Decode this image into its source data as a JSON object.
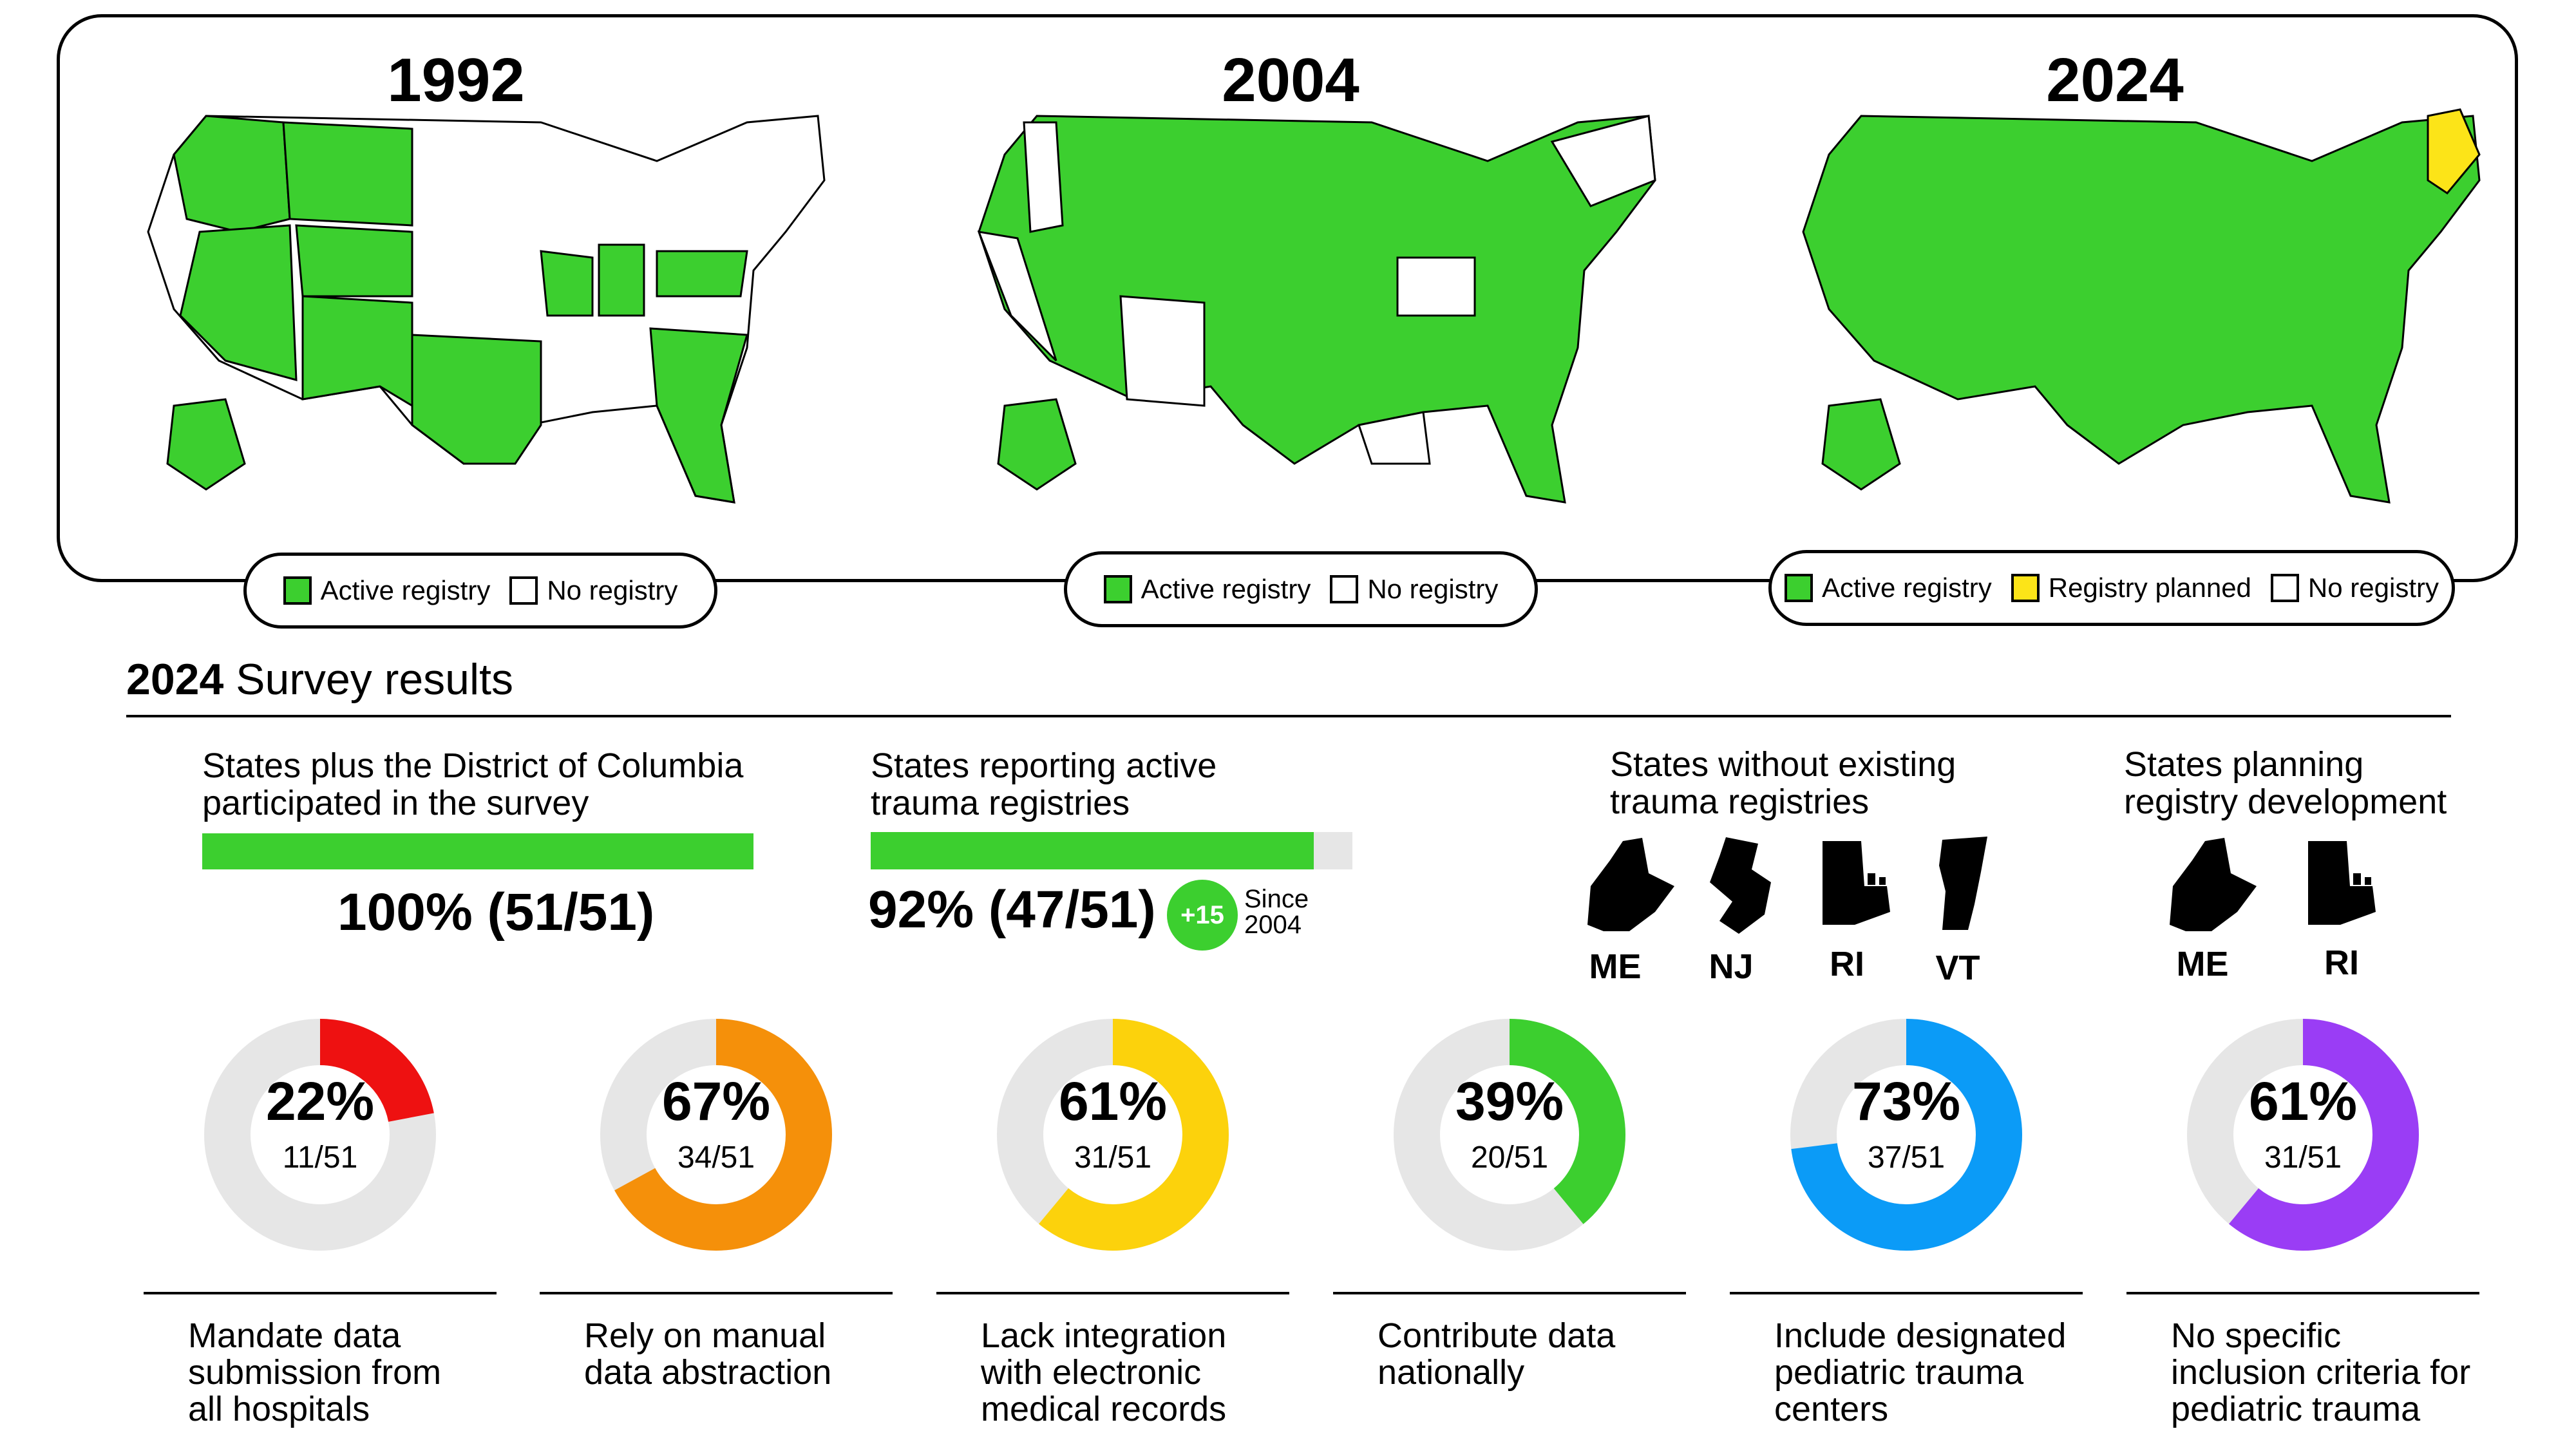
{
  "maps": [
    {
      "year": "1992",
      "legend": [
        {
          "label": "Active registry",
          "color": "#3ccf2f"
        },
        {
          "label": "No registry",
          "color": "#ffffff"
        }
      ]
    },
    {
      "year": "2004",
      "legend": [
        {
          "label": "Active registry",
          "color": "#3ccf2f"
        },
        {
          "label": "No registry",
          "color": "#ffffff"
        }
      ]
    },
    {
      "year": "2024",
      "legend": [
        {
          "label": "Active registry",
          "color": "#3ccf2f"
        },
        {
          "label": "Registry planned",
          "color": "#fce418"
        },
        {
          "label": "No registry",
          "color": "#ffffff"
        }
      ]
    }
  ],
  "survey": {
    "title_bold": "2024",
    "title_rest": " Survey results",
    "participation": {
      "heading_line1": "States plus the District of Columbia",
      "heading_line2": "participated in the survey",
      "value": "100% (51/51)",
      "fraction": 1.0,
      "color": "#3ccf2f"
    },
    "active": {
      "heading_line1": "States reporting active",
      "heading_line2": "trauma registries",
      "value": "92% (47/51)",
      "fraction": 0.92,
      "color": "#3ccf2f",
      "badge": "+15",
      "since_line1": "Since",
      "since_line2": "2004"
    },
    "without": {
      "heading_line1": "States without existing",
      "heading_line2": "trauma registries",
      "states": [
        "ME",
        "NJ",
        "RI",
        "VT"
      ]
    },
    "planning": {
      "heading_line1": "States planning",
      "heading_line2": "registry development",
      "states": [
        "ME",
        "RI"
      ]
    }
  },
  "chart_data": {
    "type": "pie",
    "categories": [
      "Mandate data submission from all hospitals",
      "Rely on manual data abstraction",
      "Lack integration with electronic medical records",
      "Contribute data nationally",
      "Include designated pediatric trauma centers",
      "No specific inclusion criteria for pediatric trauma"
    ],
    "values": [
      22,
      67,
      61,
      39,
      73,
      61
    ],
    "items": [
      {
        "pct": "22%",
        "frac": "11/51",
        "value": 22,
        "color": "#ee1111",
        "caption": [
          "Mandate data",
          "submission from",
          "all hospitals"
        ]
      },
      {
        "pct": "67%",
        "frac": "34/51",
        "value": 67,
        "color": "#f5900a",
        "caption": [
          "Rely on manual",
          "data abstraction"
        ]
      },
      {
        "pct": "61%",
        "frac": "31/51",
        "value": 61,
        "color": "#fcd20c",
        "caption": [
          "Lack integration",
          "with electronic",
          "medical records"
        ]
      },
      {
        "pct": "39%",
        "frac": "20/51",
        "value": 39,
        "color": "#3ccf2f",
        "caption": [
          "Contribute data",
          "nationally"
        ]
      },
      {
        "pct": "73%",
        "frac": "37/51",
        "value": 73,
        "color": "#0b9bf7",
        "caption": [
          "Include designated",
          "pediatric trauma",
          "centers"
        ]
      },
      {
        "pct": "61%",
        "frac": "31/51",
        "value": 61,
        "color": "#9a3df5",
        "caption": [
          "No specific",
          "inclusion criteria for",
          "pediatric trauma"
        ]
      }
    ],
    "track_color": "#e6e6e6"
  }
}
